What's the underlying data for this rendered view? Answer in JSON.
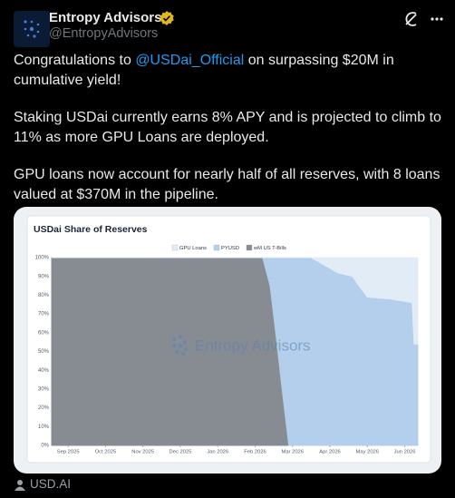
{
  "post": {
    "author_name": "Entropy Advisors",
    "author_handle": "@EntropyAdvisors",
    "paragraphs": [
      {
        "text": "Congratulations to ",
        "mention": "@USDai_Official",
        "after": " on surpassing $20M in cumulative yield!"
      },
      {
        "text": "Staking USDai currently earns 8% APY and is projected to climb to 11% as more GPU Loans are deployed."
      },
      {
        "text": "GPU loans now account for nearly half of all reserves, with 8 loans valued at $370M in the pipeline."
      }
    ],
    "card_source": "USD.AI",
    "chart": {
      "type": "stacked-area",
      "title": "USDai Share of Reserves",
      "watermark": "Entropy Advisors",
      "x": [
        -0.44,
        5.2,
        5.4,
        5.55,
        5.75,
        5.9,
        6.5,
        7.2,
        7.6,
        8.0,
        8.6,
        9.2,
        9.25,
        9.35
      ],
      "xlim": [
        -0.44,
        9.35
      ],
      "xticks": [
        {
          "value": 0,
          "label": "Sep 2025"
        },
        {
          "value": 1,
          "label": "Oct 2025"
        },
        {
          "value": 2,
          "label": "Nov 2025"
        },
        {
          "value": 3,
          "label": "Dec 2025"
        },
        {
          "value": 4,
          "label": "Jan 2026"
        },
        {
          "value": 5,
          "label": "Feb 2026"
        },
        {
          "value": 6,
          "label": "Mar 2026"
        },
        {
          "value": 7,
          "label": "Apr 2026"
        },
        {
          "value": 8,
          "label": "May 2026"
        },
        {
          "value": 9,
          "label": "Jun 2026"
        }
      ],
      "ylim": [
        0,
        100
      ],
      "yticks": [
        {
          "value": 0,
          "label": "0%"
        },
        {
          "value": 10,
          "label": "10%"
        },
        {
          "value": 20,
          "label": "20%"
        },
        {
          "value": 30,
          "label": "30%"
        },
        {
          "value": 40,
          "label": "40%"
        },
        {
          "value": 50,
          "label": "50%"
        },
        {
          "value": 60,
          "label": "60%"
        },
        {
          "value": 70,
          "label": "70%"
        },
        {
          "value": 80,
          "label": "80%"
        },
        {
          "value": 90,
          "label": "90%"
        },
        {
          "value": 100,
          "label": "100%"
        }
      ],
      "grid": true,
      "legend_order": [
        2,
        1,
        0
      ],
      "series": [
        {
          "name": "wM US T-Bills",
          "color": "#878b92",
          "values": [
            100,
            100,
            85,
            60,
            25,
            0,
            0,
            0,
            0,
            0,
            0,
            0,
            0,
            0
          ]
        },
        {
          "name": "PYUSD",
          "color": "#b3cfeb",
          "values": [
            0,
            0,
            15,
            40,
            75,
            100,
            100,
            92,
            90,
            79,
            78,
            76,
            54,
            54
          ]
        },
        {
          "name": "GPU Loans",
          "color": "#e1ecf7",
          "values": [
            0,
            0,
            0,
            0,
            0,
            0,
            0,
            8,
            10,
            21,
            22,
            24,
            46,
            46
          ]
        }
      ]
    }
  }
}
